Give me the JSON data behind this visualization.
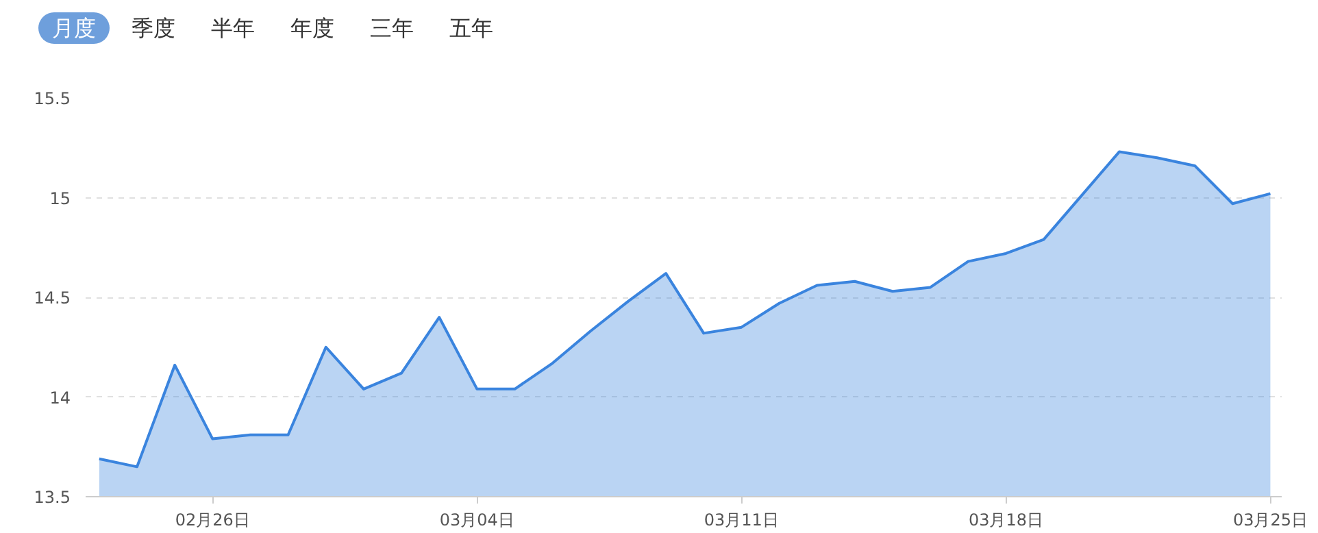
{
  "chart_data": {
    "type": "area",
    "annotations": [
      "月度",
      "季度",
      "半年",
      "年度",
      "三年",
      "五年"
    ],
    "categories": [
      null,
      null,
      null,
      "02月26日",
      null,
      null,
      null,
      null,
      null,
      null,
      "03月04日",
      null,
      null,
      null,
      null,
      null,
      null,
      "03月11日",
      null,
      null,
      null,
      null,
      null,
      null,
      "03月18日",
      null,
      null,
      null,
      null,
      null,
      null,
      "03月25日"
    ],
    "series": [
      {
        "color": "#3a84de",
        "values": [
          13.69,
          13.65,
          14.16,
          13.79,
          13.81,
          13.81,
          14.25,
          14.04,
          14.12,
          14.4,
          14.04,
          14.04,
          14.17,
          14.33,
          14.48,
          14.62,
          14.32,
          14.35,
          14.47,
          14.56,
          14.58,
          14.53,
          14.55,
          14.68,
          14.72,
          14.79,
          15.01,
          15.23,
          15.2,
          15.16,
          14.97,
          15.02
        ]
      }
    ],
    "ylim": [
      13.5,
      15.5
    ],
    "yticks": [
      13.5,
      14,
      14.5,
      15,
      15.5
    ],
    "grid": "y",
    "marker": "none",
    "line_style": "solid"
  }
}
